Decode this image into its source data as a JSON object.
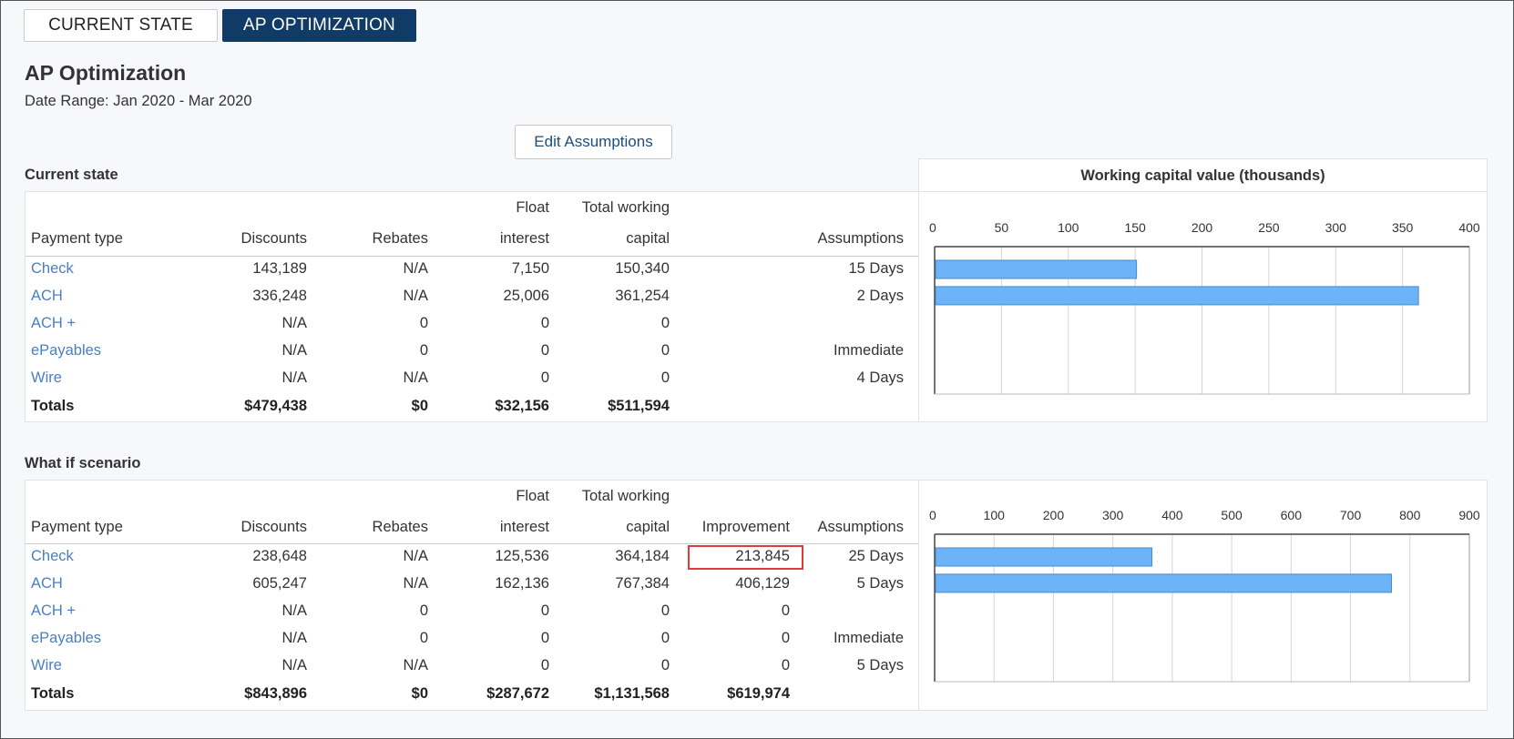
{
  "tabs": [
    {
      "label": "CURRENT STATE"
    },
    {
      "label": "AP OPTIMIZATION"
    }
  ],
  "page": {
    "title": "AP Optimization",
    "date_range": "Date Range: Jan 2020 - Mar 2020",
    "edit_button": "Edit Assumptions"
  },
  "current": {
    "section_title": "Current state",
    "headers": {
      "payment_type": "Payment type",
      "discounts": "Discounts",
      "rebates": "Rebates",
      "float_1": "Float",
      "float_2": "interest",
      "twc_1": "Total working",
      "twc_2": "capital",
      "assumptions": "Assumptions"
    },
    "rows": [
      {
        "type": "Check",
        "discounts": "143,189",
        "rebates": "N/A",
        "float": "7,150",
        "twc": "150,340",
        "assumptions": "15 Days"
      },
      {
        "type": "ACH",
        "discounts": "336,248",
        "rebates": "N/A",
        "float": "25,006",
        "twc": "361,254",
        "assumptions": "2 Days"
      },
      {
        "type": "ACH +",
        "discounts": "N/A",
        "rebates": "0",
        "float": "0",
        "twc": "0",
        "assumptions": ""
      },
      {
        "type": "ePayables",
        "discounts": "N/A",
        "rebates": "0",
        "float": "0",
        "twc": "0",
        "assumptions": "Immediate"
      },
      {
        "type": "Wire",
        "discounts": "N/A",
        "rebates": "N/A",
        "float": "0",
        "twc": "0",
        "assumptions": "4 Days"
      }
    ],
    "totals": {
      "label": "Totals",
      "discounts": "$479,438",
      "rebates": "$0",
      "float": "$32,156",
      "twc": "$511,594"
    }
  },
  "whatif": {
    "section_title": "What if scenario",
    "headers": {
      "payment_type": "Payment type",
      "discounts": "Discounts",
      "rebates": "Rebates",
      "float_1": "Float",
      "float_2": "interest",
      "twc_1": "Total working",
      "twc_2": "capital",
      "improvement": "Improvement",
      "assumptions": "Assumptions"
    },
    "rows": [
      {
        "type": "Check",
        "discounts": "238,648",
        "rebates": "N/A",
        "float": "125,536",
        "twc": "364,184",
        "improvement": "213,845",
        "assumptions": "25 Days"
      },
      {
        "type": "ACH",
        "discounts": "605,247",
        "rebates": "N/A",
        "float": "162,136",
        "twc": "767,384",
        "improvement": "406,129",
        "assumptions": "5 Days"
      },
      {
        "type": "ACH +",
        "discounts": "N/A",
        "rebates": "0",
        "float": "0",
        "twc": "0",
        "improvement": "0",
        "assumptions": ""
      },
      {
        "type": "ePayables",
        "discounts": "N/A",
        "rebates": "0",
        "float": "0",
        "twc": "0",
        "improvement": "0",
        "assumptions": "Immediate"
      },
      {
        "type": "Wire",
        "discounts": "N/A",
        "rebates": "N/A",
        "float": "0",
        "twc": "0",
        "improvement": "0",
        "assumptions": "5 Days"
      }
    ],
    "totals": {
      "label": "Totals",
      "discounts": "$843,896",
      "rebates": "$0",
      "float": "$287,672",
      "twc": "$1,131,568",
      "improvement": "$619,974"
    }
  },
  "chart_data": [
    {
      "type": "bar",
      "orientation": "horizontal",
      "title": "Working capital value (thousands)",
      "categories": [
        "Check",
        "ACH",
        "ACH +",
        "ePayables",
        "Wire"
      ],
      "values": [
        150.34,
        361.254,
        0,
        0,
        0
      ],
      "xlim": [
        0,
        400
      ],
      "ticks": [
        "0",
        "50",
        "100",
        "150",
        "200",
        "250",
        "300",
        "350",
        "400"
      ],
      "grid": true,
      "bar_color": "#6cb4f7"
    },
    {
      "type": "bar",
      "orientation": "horizontal",
      "title": "",
      "categories": [
        "Check",
        "ACH",
        "ACH +",
        "ePayables",
        "Wire"
      ],
      "values": [
        364.184,
        767.384,
        0,
        0,
        0
      ],
      "xlim": [
        0,
        900
      ],
      "ticks": [
        "0",
        "100",
        "200",
        "300",
        "400",
        "500",
        "600",
        "700",
        "800",
        "900"
      ],
      "grid": true,
      "bar_color": "#6cb4f7"
    }
  ],
  "colors": {
    "accent": "#0f3b66",
    "link": "#4a7fc1",
    "highlight": "#e03a3a",
    "bar": "#6cb4f7"
  }
}
